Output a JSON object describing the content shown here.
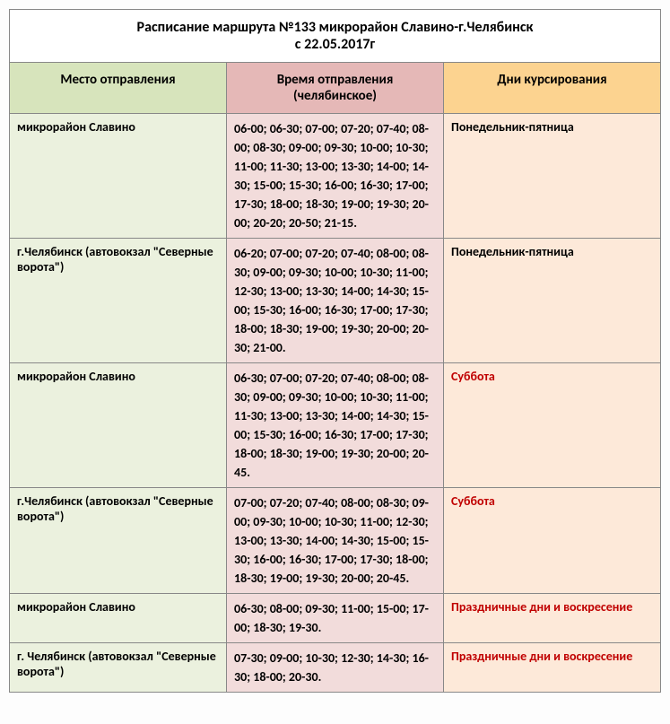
{
  "title_line1": "Расписание маршрута №133 микрорайон Славино-г.Челябинск",
  "title_line2": "с 22.05.2017г",
  "headers": {
    "place": "Место отправления",
    "time": "Время отправления (челябинское)",
    "days": "Дни курсирования"
  },
  "rows": [
    {
      "place": "микрорайон Славино",
      "time": "06-00; 06-30; 07-00; 07-20; 07-40; 08-00; 08-30; 09-00; 09-30; 10-00; 10-30; 11-00; 11-30; 13-00; 13-30; 14-00; 14-30; 15-00; 15-30; 16-00; 16-30; 17-00; 17-30; 18-00; 18-30; 19-00; 19-30; 20-00; 20-20; 20-50; 21-15.",
      "days": "Понедельник-пятница",
      "days_red": false
    },
    {
      "place": "г.Челябинск (автовокзал \"Северные ворота\")",
      "time": "06-20; 07-00; 07-20; 07-40; 08-00; 08-30; 09-00; 09-30; 10-00; 10-30; 11-00; 12-30; 13-00; 13-30; 14-00; 14-30; 15-00; 15-30; 16-00; 16-30; 17-00; 17-30; 18-00; 18-30; 19-00; 19-30; 20-00; 20-30; 21-00.",
      "days": "Понедельник-пятница",
      "days_red": false
    },
    {
      "place": "микрорайон Славино",
      "time": "06-30; 07-00; 07-20; 07-40; 08-00; 08-30; 09-00; 09-30; 10-00; 10-30; 11-00; 11-30; 13-00; 13-30; 14-00; 14-30; 15-00; 15-30; 16-00; 16-30; 17-00; 17-30; 18-00; 18-30; 19-00; 19-30; 20-00; 20-45.",
      "days": "Суббота",
      "days_red": true
    },
    {
      "place": "г.Челябинск (автовокзал \"Северные ворота\")",
      "time": "07-00; 07-20; 07-40; 08-00; 08-30; 09-00; 09-30; 10-00; 10-30; 11-00; 12-30; 13-00; 13-30; 14-00; 14-30; 15-00; 15-30; 16-00; 16-30; 17-00; 17-30; 18-00; 18-30; 19-00; 19-30; 20-00; 20-45.",
      "days": "Суббота",
      "days_red": true
    },
    {
      "place": "микрорайон Славино",
      "time": "06-30; 08-00; 09-30; 11-00; 15-00; 17-00; 18-30; 19-30.",
      "days": "Праздничные дни и воскресение",
      "days_red": true
    },
    {
      "place": "г. Челябинск (автовокзал \"Северные ворота\")",
      "time": "07-30; 09-00; 10-30; 12-30; 14-30; 16-30; 18-00;  20-30.",
      "days": "Праздничные дни и воскресение",
      "days_red": true
    }
  ]
}
